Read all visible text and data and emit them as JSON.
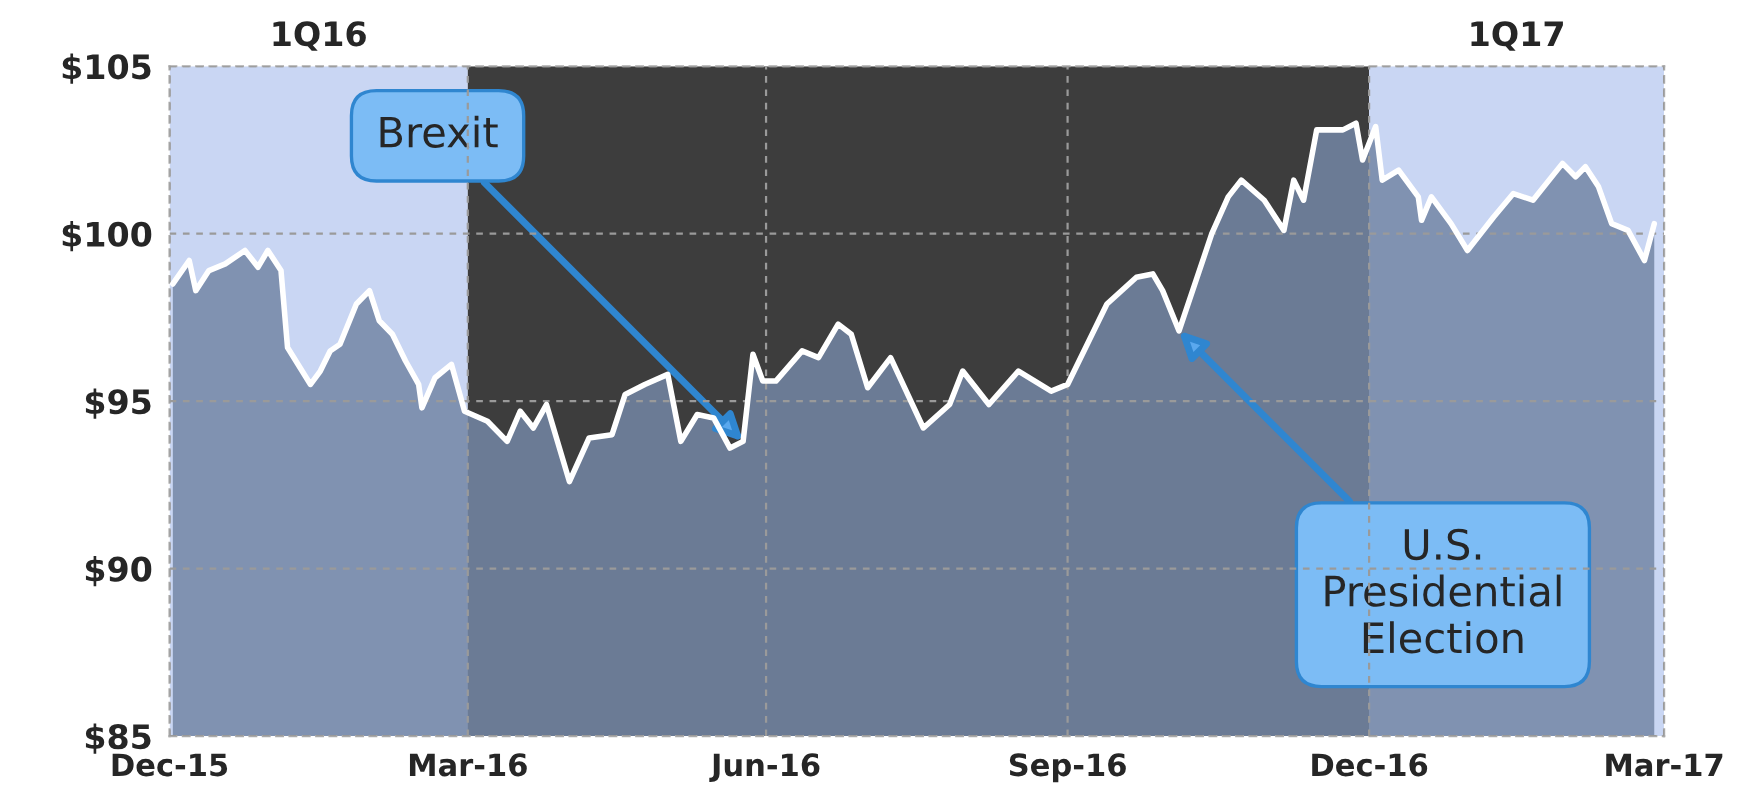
{
  "chart_data": {
    "type": "area",
    "x": [
      "2016-01-01",
      "2016-01-06",
      "2016-01-08",
      "2016-01-12",
      "2016-01-17",
      "2016-01-23",
      "2016-01-27",
      "2016-01-30",
      "2016-02-03",
      "2016-02-05",
      "2016-02-12",
      "2016-02-15",
      "2016-02-18",
      "2016-02-21",
      "2016-02-26",
      "2016-03-01",
      "2016-03-04",
      "2016-03-08",
      "2016-03-12",
      "2016-03-16",
      "2016-03-17",
      "2016-03-21",
      "2016-03-26",
      "2016-03-30",
      "2016-04-06",
      "2016-04-12",
      "2016-04-16",
      "2016-04-20",
      "2016-04-24",
      "2016-05-01",
      "2016-05-07",
      "2016-05-14",
      "2016-05-18",
      "2016-05-24",
      "2016-05-31",
      "2016-06-04",
      "2016-06-09",
      "2016-06-14",
      "2016-06-19",
      "2016-06-23",
      "2016-06-26",
      "2016-06-29",
      "2016-07-03",
      "2016-07-11",
      "2016-07-16",
      "2016-07-22",
      "2016-07-26",
      "2016-07-31",
      "2016-08-07",
      "2016-08-17",
      "2016-08-25",
      "2016-08-29",
      "2016-09-06",
      "2016-09-15",
      "2016-09-25",
      "2016-09-30",
      "2016-10-06",
      "2016-10-12",
      "2016-10-21",
      "2016-10-26",
      "2016-10-29",
      "2016-11-03",
      "2016-11-13",
      "2016-11-18",
      "2016-11-22",
      "2016-11-29",
      "2016-12-05",
      "2016-12-08",
      "2016-12-11",
      "2016-12-15",
      "2016-12-23",
      "2016-12-27",
      "2016-12-29",
      "2017-01-02",
      "2017-01-04",
      "2017-01-09",
      "2017-01-15",
      "2017-01-16",
      "2017-01-19",
      "2017-01-25",
      "2017-01-30",
      "2017-02-07",
      "2017-02-13",
      "2017-02-19",
      "2017-02-28",
      "2017-03-04",
      "2017-03-07",
      "2017-03-11",
      "2017-03-15",
      "2017-03-20",
      "2017-03-25",
      "2017-03-28"
    ],
    "series": [
      {
        "color": "#7386a4",
        "values": [
          98.5,
          99.2,
          98.3,
          98.9,
          99.1,
          99.5,
          99.0,
          99.5,
          98.9,
          96.6,
          95.5,
          95.9,
          96.5,
          96.7,
          97.9,
          98.3,
          97.4,
          97.0,
          96.2,
          95.5,
          94.8,
          95.7,
          96.1,
          94.7,
          94.4,
          93.8,
          94.7,
          94.2,
          94.9,
          92.6,
          93.9,
          94.0,
          95.2,
          95.5,
          95.8,
          93.8,
          94.6,
          94.5,
          93.6,
          93.8,
          96.4,
          95.6,
          95.6,
          96.5,
          96.3,
          97.3,
          97.0,
          95.4,
          96.3,
          94.2,
          94.9,
          95.9,
          94.9,
          95.9,
          95.3,
          95.5,
          96.7,
          97.9,
          98.7,
          98.8,
          98.3,
          97.1,
          100.0,
          101.1,
          101.6,
          101.0,
          100.1,
          101.6,
          101.0,
          103.1,
          103.1,
          103.3,
          102.2,
          103.2,
          101.6,
          101.9,
          101.1,
          100.4,
          101.1,
          100.3,
          99.5,
          100.5,
          101.2,
          101.0,
          102.1,
          101.7,
          102.0,
          101.4,
          100.3,
          100.1,
          99.2,
          100.3
        ]
      }
    ],
    "xlim": [
      "2015-12-31",
      "2017-03-31"
    ],
    "xticks": [
      {
        "value": "2015-12-31",
        "label": "Dec-15"
      },
      {
        "value": "2016-03-31",
        "label": "Mar-16"
      },
      {
        "value": "2016-06-30",
        "label": "Jun-16"
      },
      {
        "value": "2016-09-30",
        "label": "Sep-16"
      },
      {
        "value": "2016-12-31",
        "label": "Dec-16"
      },
      {
        "value": "2017-03-31",
        "label": "Mar-17"
      }
    ],
    "ylim": [
      85,
      105
    ],
    "yticks": [
      {
        "value": 85,
        "label": "$85"
      },
      {
        "value": 90,
        "label": "$90"
      },
      {
        "value": 95,
        "label": "$95"
      },
      {
        "value": 100,
        "label": "$100"
      },
      {
        "value": 105,
        "label": "$105"
      }
    ],
    "grid": true,
    "bands": [
      {
        "axis": "x",
        "from": "2015-12-31",
        "to": "2016-03-31",
        "label": "1Q16",
        "color": "#c9d6f3"
      },
      {
        "axis": "x",
        "from": "2016-03-31",
        "to": "2016-12-31",
        "color": "#3d3d3d"
      },
      {
        "axis": "x",
        "from": "2016-12-31",
        "to": "2017-03-31",
        "label": "1Q17",
        "color": "#c9d6f3"
      }
    ],
    "annotations": [
      {
        "text": "Brexit",
        "x": "2016-06-23",
        "y": 93.8
      },
      {
        "text": "U.S.\nPresidential\nElection",
        "x": "2016-11-03",
        "y": 97.1
      }
    ]
  }
}
